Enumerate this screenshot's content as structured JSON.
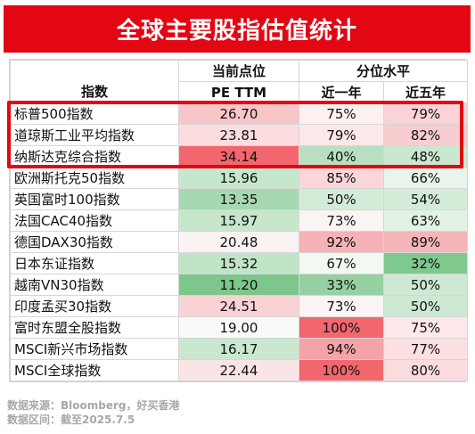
{
  "title": "全球主要股指估值统计",
  "chart_data": {
    "type": "table",
    "header": {
      "index_label": "指数",
      "pe_group": "当前点位",
      "pe_label": "PE TTM",
      "pct_group": "分位水平",
      "pct_1y": "近一年",
      "pct_5y": "近五年"
    },
    "rows": [
      {
        "name": "标普500指数",
        "pe": "26.70",
        "p1": "75%",
        "p5": "79%",
        "pe_color": "#f7c6c9",
        "p1_color": "#fdf0f0",
        "p5_color": "#f9d3d6"
      },
      {
        "name": "道琼斯工业平均指数",
        "pe": "23.81",
        "p1": "79%",
        "p5": "82%",
        "pe_color": "#fbdcdf",
        "p1_color": "#fce8ea",
        "p5_color": "#f8cdd0"
      },
      {
        "name": "纳斯达克综合指数",
        "pe": "34.14",
        "p1": "40%",
        "p5": "48%",
        "pe_color": "#f2676e",
        "p1_color": "#b8e0c0",
        "p5_color": "#c9e8cf"
      },
      {
        "name": "欧洲斯托克50指数",
        "pe": "15.96",
        "p1": "85%",
        "p5": "66%",
        "pe_color": "#c7e7cd",
        "p1_color": "#f9d6d9",
        "p5_color": "#e8f5ea"
      },
      {
        "name": "英国富时100指数",
        "pe": "13.35",
        "p1": "50%",
        "p5": "54%",
        "pe_color": "#a6d9b1",
        "p1_color": "#d3ecd8",
        "p5_color": "#d3ecd8"
      },
      {
        "name": "法国CAC40指数",
        "pe": "15.97",
        "p1": "73%",
        "p5": "63%",
        "pe_color": "#c7e7cd",
        "p1_color": "#fbf4f4",
        "p5_color": "#e2f2e5"
      },
      {
        "name": "德国DAX30指数",
        "pe": "20.48",
        "p1": "92%",
        "p5": "89%",
        "pe_color": "#fbf2f3",
        "p1_color": "#f6b3b7",
        "p5_color": "#f6b5b9"
      },
      {
        "name": "日本东证指数",
        "pe": "15.32",
        "p1": "67%",
        "p5": "32%",
        "pe_color": "#c1e4c8",
        "p1_color": "#f2f9f3",
        "p5_color": "#7fc88e"
      },
      {
        "name": "越南VN30指数",
        "pe": "11.20",
        "p1": "33%",
        "p5": "50%",
        "pe_color": "#7dc68c",
        "p1_color": "#96d1a3",
        "p5_color": "#cde9d3"
      },
      {
        "name": "印度孟买30指数",
        "pe": "24.51",
        "p1": "73%",
        "p5": "50%",
        "pe_color": "#f9d2d5",
        "p1_color": "#fbf4f4",
        "p5_color": "#cde9d3"
      },
      {
        "name": "富时东盟全股指数",
        "pe": "19.00",
        "p1": "100%",
        "p5": "75%",
        "pe_color": "#f8fbf8",
        "p1_color": "#f2676e",
        "p5_color": "#fde9ea"
      },
      {
        "name": "MSCI新兴市场指数",
        "pe": "16.17",
        "p1": "94%",
        "p5": "77%",
        "pe_color": "#c9e8cf",
        "p1_color": "#f4a3a8",
        "p5_color": "#fce0e2"
      },
      {
        "name": "MSCI全球指数",
        "pe": "22.44",
        "p1": "100%",
        "p5": "80%",
        "pe_color": "#fbe4e6",
        "p1_color": "#f2676e",
        "p5_color": "#fadcdf"
      }
    ]
  },
  "source_line": "数据来源：Bloomberg，好买香港",
  "period_line": "数据区间：截至2025.7.5"
}
